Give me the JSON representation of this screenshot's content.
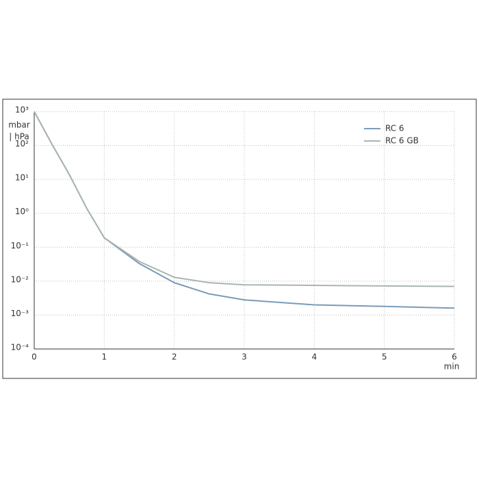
{
  "chart_data": {
    "type": "line",
    "y_label_top": "mbar",
    "y_label_bottom": "| hPa",
    "x_label": "min",
    "x": [
      0,
      0.25,
      0.5,
      0.75,
      1,
      1.5,
      2,
      2.5,
      3,
      4,
      5,
      6
    ],
    "series": [
      {
        "name": "RC 6",
        "color": "#7a9ab8",
        "values": [
          1000,
          112,
          14,
          1.4,
          0.19,
          0.033,
          0.009,
          0.0042,
          0.0028,
          0.002,
          0.0018,
          0.0016
        ]
      },
      {
        "name": "RC 6 GB",
        "color": "#a9b5b1",
        "values": [
          1000,
          112,
          14,
          1.4,
          0.19,
          0.038,
          0.013,
          0.009,
          0.0078,
          0.0075,
          0.0072,
          0.007
        ]
      }
    ],
    "xlim": [
      0,
      6
    ],
    "xticks": [
      0,
      1,
      2,
      3,
      4,
      5,
      6
    ],
    "ylim": [
      0.0001,
      1000
    ],
    "log_y": true,
    "grid": true,
    "yticks": [
      {
        "value": 0.0001,
        "label": "10⁻⁴"
      },
      {
        "value": 0.001,
        "label": "10⁻³"
      },
      {
        "value": 0.01,
        "label": "10⁻²"
      },
      {
        "value": 0.1,
        "label": "10⁻¹"
      },
      {
        "value": 1,
        "label": "10⁰"
      },
      {
        "value": 10,
        "label": "10¹"
      },
      {
        "value": 100,
        "label": "10²"
      },
      {
        "value": 1000,
        "label": "10³"
      }
    ]
  }
}
